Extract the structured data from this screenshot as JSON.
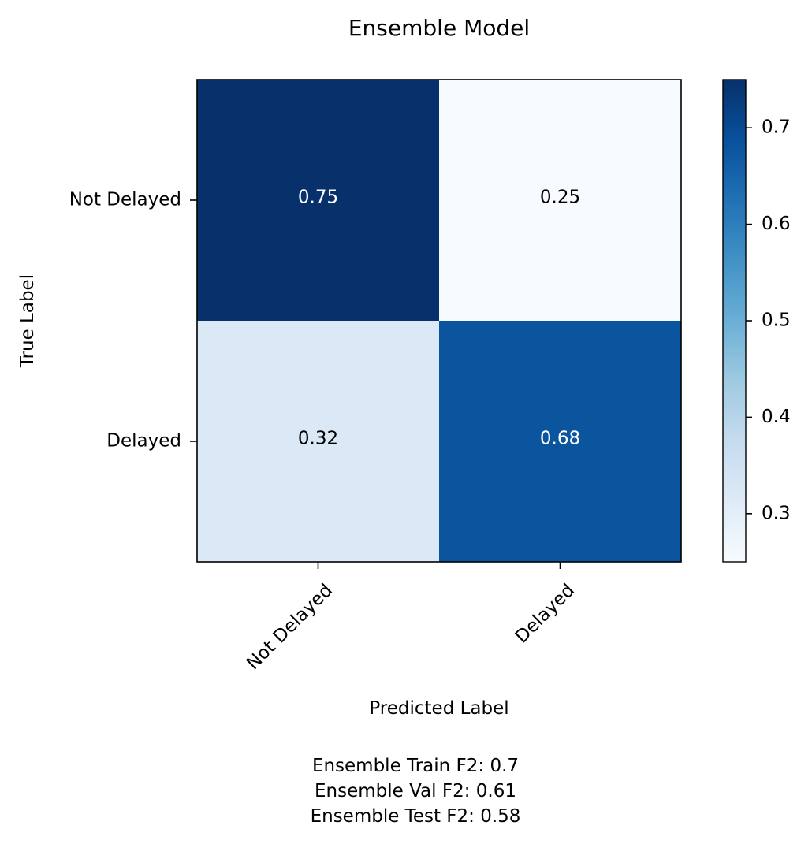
{
  "chart_data": {
    "type": "heatmap",
    "title": "Ensemble Model",
    "xlabel": "Predicted Label",
    "ylabel": "True Label",
    "x_categories": [
      "Not Delayed",
      "Delayed"
    ],
    "y_categories": [
      "Not Delayed",
      "Delayed"
    ],
    "values": [
      [
        0.75,
        0.25
      ],
      [
        0.32,
        0.68
      ]
    ],
    "value_labels": [
      [
        "0.75",
        "0.25"
      ],
      [
        "0.32",
        "0.68"
      ]
    ],
    "colormap": "Blues",
    "colormap_stops": [
      "#f7fbff",
      "#deebf7",
      "#c6dbef",
      "#9ecae1",
      "#6baed6",
      "#4292c6",
      "#2171b5",
      "#08519c",
      "#08306b"
    ],
    "vmin": 0.25,
    "vmax": 0.75,
    "colorbar_ticks": [
      0.3,
      0.4,
      0.5,
      0.6,
      0.7
    ],
    "colorbar_tick_labels": [
      "0.3",
      "0.4",
      "0.5",
      "0.6",
      "0.7"
    ],
    "grid": false,
    "x_tick_rotation_deg": 45
  },
  "footer": {
    "lines": [
      "Ensemble Train F2: 0.7",
      "Ensemble Val F2: 0.61",
      "Ensemble Test F2: 0.58"
    ]
  }
}
